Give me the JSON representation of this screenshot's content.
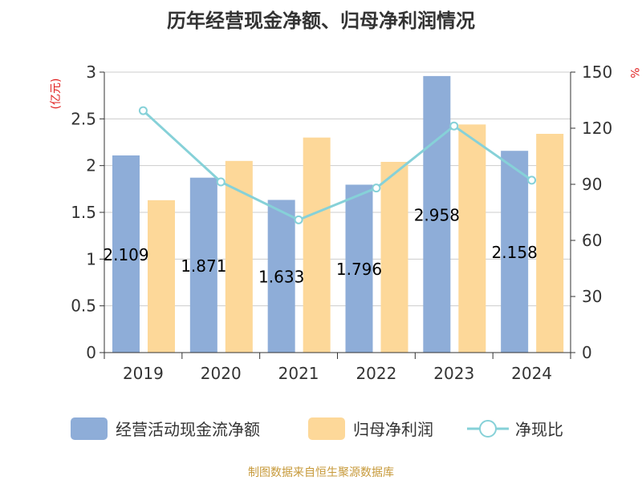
{
  "chart_data": {
    "type": "bar",
    "title": "历年经营现金净额、归母净利润情况",
    "categories": [
      "2019",
      "2020",
      "2021",
      "2022",
      "2023",
      "2024"
    ],
    "series": [
      {
        "name": "经营活动现金流净额",
        "kind": "bar",
        "axis": "left",
        "values": [
          2.109,
          1.871,
          1.633,
          1.796,
          2.958,
          2.158
        ],
        "labels": [
          "2.109",
          "1.871",
          "1.633",
          "1.796",
          "2.958",
          "2.158"
        ],
        "color": "#8eadd8"
      },
      {
        "name": "归母净利润",
        "kind": "bar",
        "axis": "left",
        "values": [
          1.63,
          2.05,
          2.3,
          2.04,
          2.44,
          2.34
        ],
        "color": "#fdd899"
      },
      {
        "name": "净现比",
        "kind": "line",
        "axis": "right",
        "values": [
          129.4,
          91.3,
          71.0,
          88.0,
          121.2,
          92.2
        ],
        "color": "#86d1d8"
      }
    ],
    "y_left": {
      "label": "(亿元)",
      "ylim": [
        0,
        3
      ],
      "ticks": [
        "0",
        "0.5",
        "1",
        "1.5",
        "2",
        "2.5",
        "3"
      ],
      "tick_values": [
        0,
        0.5,
        1,
        1.5,
        2,
        2.5,
        3
      ]
    },
    "y_right": {
      "label": "%",
      "ylim": [
        0,
        150
      ],
      "ticks": [
        "0",
        "30",
        "60",
        "90",
        "120",
        "150"
      ],
      "tick_values": [
        0,
        30,
        60,
        90,
        120,
        150
      ]
    },
    "legend_position": "bottom",
    "grid": true
  },
  "source_text": "制图数据来自恒生聚源数据库",
  "colors": {
    "axis_label": "#e02020",
    "source": "#c79a3b",
    "grid": "#cccccc",
    "axis": "#333333"
  }
}
